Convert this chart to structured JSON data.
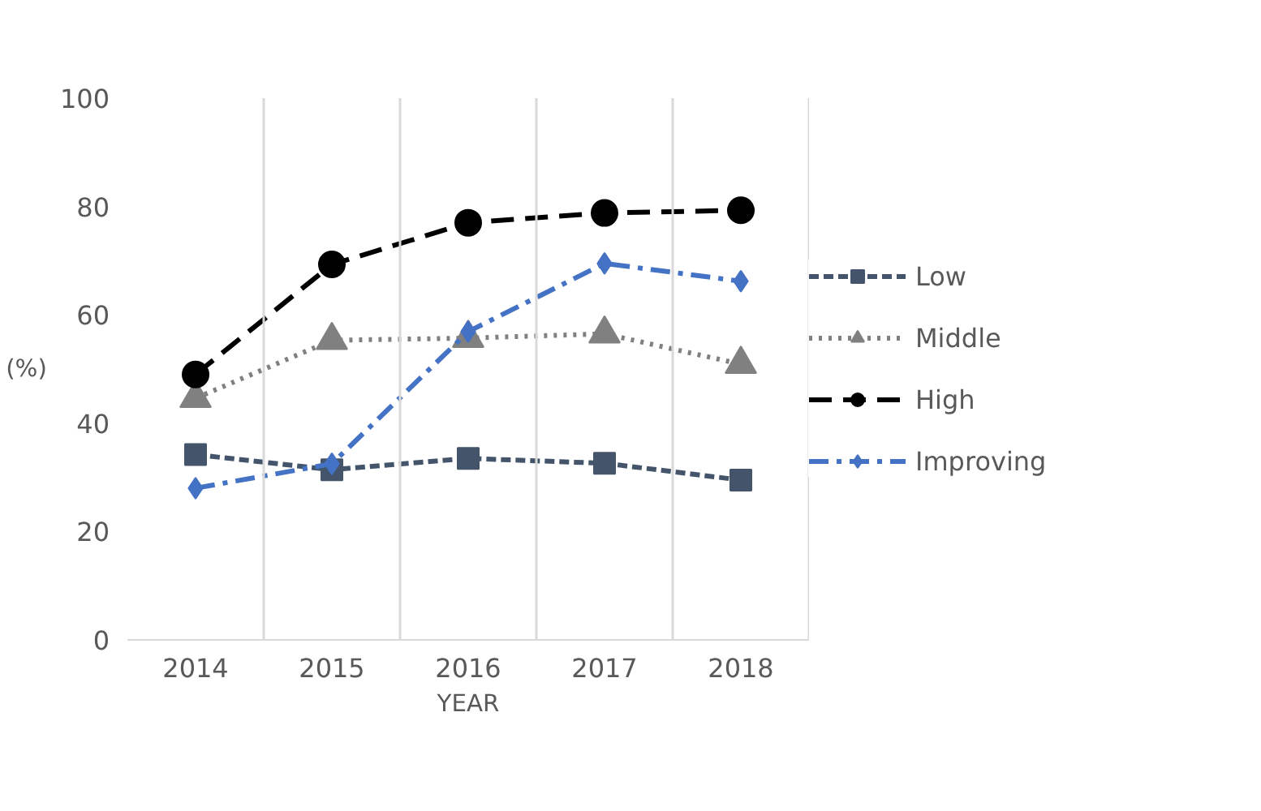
{
  "chart_data": {
    "type": "line",
    "xlabel": "YEAR",
    "ylabel": "(%)",
    "categories": [
      "2014",
      "2015",
      "2016",
      "2017",
      "2018"
    ],
    "ylim": [
      0,
      100
    ],
    "yticks": [
      0,
      20,
      40,
      60,
      80,
      100
    ],
    "grid": "x",
    "legend": "right",
    "series": [
      {
        "name": "Low",
        "color": "#44546a",
        "marker": "square",
        "line_style": "dashed",
        "values": [
          34.2,
          31.4,
          33.5,
          32.6,
          29.5
        ]
      },
      {
        "name": "Middle",
        "color": "#808080",
        "marker": "triangle",
        "line_style": "dotted",
        "values": [
          44.6,
          55.3,
          55.7,
          56.5,
          50.9
        ]
      },
      {
        "name": "High",
        "color": "#000000",
        "marker": "circle",
        "line_style": "longdash",
        "values": [
          49.0,
          69.3,
          77.0,
          78.8,
          79.3
        ]
      },
      {
        "name": "Improving",
        "color": "#4472c4",
        "marker": "diamond",
        "line_style": "dashdot",
        "values": [
          28.0,
          32.5,
          56.9,
          69.5,
          66.2
        ]
      }
    ]
  }
}
